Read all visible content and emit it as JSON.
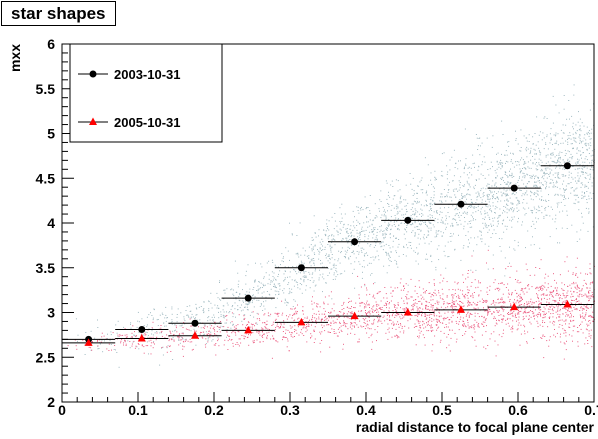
{
  "chart_data": {
    "type": "scatter",
    "title": "star shapes",
    "xlabel": "radial distance to focal plane center",
    "ylabel": "mxx",
    "xlim": [
      0,
      0.7
    ],
    "ylim": [
      2,
      6
    ],
    "xticks": [
      "0",
      "0.1",
      "0.2",
      "0.3",
      "0.4",
      "0.5",
      "0.6",
      "0.7"
    ],
    "yticks": [
      "2",
      "2.5",
      "3",
      "3.5",
      "4",
      "4.5",
      "5",
      "5.5",
      "6"
    ],
    "legend_position": "top-left",
    "x": [
      0.035,
      0.105,
      0.175,
      0.245,
      0.315,
      0.385,
      0.455,
      0.525,
      0.595,
      0.665
    ],
    "xerr": 0.035,
    "series": [
      {
        "name": "2003-10-31",
        "marker": "circle",
        "color": "#000000",
        "cloud_color": "#7a9ea8",
        "values": [
          2.7,
          2.81,
          2.88,
          3.16,
          3.5,
          3.79,
          4.03,
          4.21,
          4.39,
          4.64
        ]
      },
      {
        "name": "2005-10-31",
        "marker": "triangle",
        "color": "#ff0000",
        "cloud_color": "#e8436e",
        "values": [
          2.66,
          2.71,
          2.74,
          2.8,
          2.89,
          2.96,
          3.0,
          3.03,
          3.06,
          3.09
        ]
      }
    ]
  }
}
